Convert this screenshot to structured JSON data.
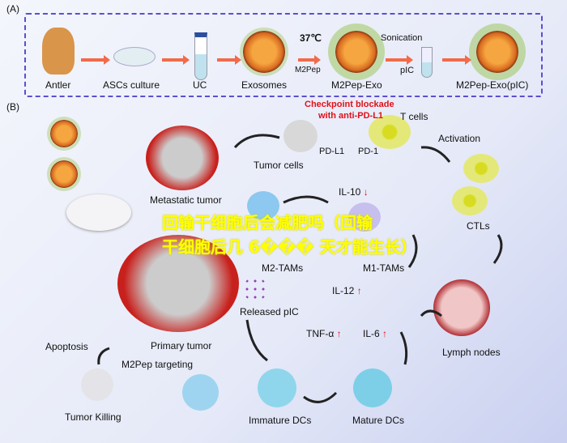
{
  "panel_a": {
    "label": "(A)",
    "steps": [
      "Antler",
      "ASCs culture",
      "UC",
      "Exosomes",
      "M2Pep-Exo",
      "M2Pep-Exo(pIC)"
    ],
    "temp": "37℃",
    "peptide": "M2Pep",
    "sonication": "Sonication",
    "pic": "pIC"
  },
  "panel_b": {
    "label": "(B)",
    "checkpoint_line1": "Checkpoint blockade",
    "checkpoint_line2": "with anti-PD-L1",
    "t_cells": "T cells",
    "pd_l1": "PD-L1",
    "pd_1": "PD-1",
    "activation": "Activation",
    "tumor_cells": "Tumor cells",
    "metastatic_tumor": "Metastatic tumor",
    "il10": "IL-10",
    "ctls": "CTLs",
    "m2_tams": "M2-TAMs",
    "m1_tams": "M1-TAMs",
    "il12": "IL-12",
    "released_pic": "Released pIC",
    "tnf": "TNF-α",
    "il6": "IL-6",
    "apoptosis": "Apoptosis",
    "primary_tumor": "Primary tumor",
    "m2pep_targeting": "M2Pep targeting",
    "lymph_nodes": "Lymph nodes",
    "tumor_killing": "Tumor Killing",
    "immature_dcs": "Immature DCs",
    "mature_dcs": "Mature DCs",
    "down_arrow": "↓",
    "up_arrow": "↑"
  },
  "overlay": {
    "line1": "回输干细胞后会减肥吗（回输",
    "line2": "干细胞后几 6��� 天才能生长）"
  },
  "colors": {
    "border": "#5a4fd0",
    "arrow": "#f26a4a",
    "highlight": "#e0101a",
    "overlay": "#ffff00"
  }
}
